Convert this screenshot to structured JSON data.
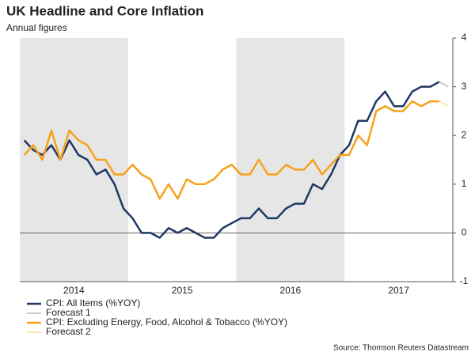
{
  "chart_data": {
    "type": "line",
    "title": "UK Headline and Core Inflation",
    "subtitle": "Annual figures",
    "source": "Source: Thomson Reuters Datastream",
    "x": [
      2014.042,
      2014.125,
      2014.208,
      2014.292,
      2014.375,
      2014.458,
      2014.542,
      2014.625,
      2014.708,
      2014.792,
      2014.875,
      2014.958,
      2015.042,
      2015.125,
      2015.208,
      2015.292,
      2015.375,
      2015.458,
      2015.542,
      2015.625,
      2015.708,
      2015.792,
      2015.875,
      2015.958,
      2016.042,
      2016.125,
      2016.208,
      2016.292,
      2016.375,
      2016.458,
      2016.542,
      2016.625,
      2016.708,
      2016.792,
      2016.875,
      2016.958,
      2017.042,
      2017.125,
      2017.208,
      2017.292,
      2017.375,
      2017.458,
      2017.542,
      2017.625,
      2017.708,
      2017.792,
      2017.875,
      2017.958
    ],
    "series": [
      {
        "name": "CPI: All Items (%YOY)",
        "color": "#1f3864",
        "width": 2.5,
        "values": [
          1.9,
          1.7,
          1.6,
          1.8,
          1.5,
          1.9,
          1.6,
          1.5,
          1.2,
          1.3,
          1.0,
          0.5,
          0.3,
          0.0,
          0.0,
          -0.1,
          0.1,
          0.0,
          0.1,
          0.0,
          -0.1,
          -0.1,
          0.1,
          0.2,
          0.3,
          0.3,
          0.5,
          0.3,
          0.3,
          0.5,
          0.6,
          0.6,
          1.0,
          0.9,
          1.2,
          1.6,
          1.8,
          2.3,
          2.3,
          2.7,
          2.9,
          2.6,
          2.6,
          2.9,
          3.0,
          3.0,
          3.1,
          null
        ]
      },
      {
        "name": "Forecast 1",
        "color": "#b8b8b8",
        "width": 1.5,
        "values": [
          null,
          null,
          null,
          null,
          null,
          null,
          null,
          null,
          null,
          null,
          null,
          null,
          null,
          null,
          null,
          null,
          null,
          null,
          null,
          null,
          null,
          null,
          null,
          null,
          null,
          null,
          null,
          null,
          null,
          null,
          null,
          null,
          null,
          null,
          null,
          null,
          null,
          null,
          null,
          null,
          null,
          null,
          null,
          null,
          null,
          null,
          3.1,
          3.0
        ]
      },
      {
        "name": "CPI: Excluding Energy, Food, Alcohol & Tobacco (%YOY)",
        "color": "#f7a21b",
        "width": 2.5,
        "values": [
          1.6,
          1.8,
          1.5,
          2.1,
          1.5,
          2.1,
          1.9,
          1.8,
          1.5,
          1.5,
          1.2,
          1.2,
          1.4,
          1.2,
          1.1,
          0.7,
          1.0,
          0.7,
          1.1,
          1.0,
          1.0,
          1.1,
          1.3,
          1.4,
          1.2,
          1.2,
          1.5,
          1.2,
          1.2,
          1.4,
          1.3,
          1.3,
          1.5,
          1.2,
          1.4,
          1.6,
          1.6,
          2.0,
          1.8,
          2.5,
          2.6,
          2.5,
          2.5,
          2.7,
          2.6,
          2.7,
          2.7,
          null
        ]
      },
      {
        "name": "Forecast 2",
        "color": "#f9dc9c",
        "width": 1.5,
        "values": [
          null,
          null,
          null,
          null,
          null,
          null,
          null,
          null,
          null,
          null,
          null,
          null,
          null,
          null,
          null,
          null,
          null,
          null,
          null,
          null,
          null,
          null,
          null,
          null,
          null,
          null,
          null,
          null,
          null,
          null,
          null,
          null,
          null,
          null,
          null,
          null,
          null,
          null,
          null,
          null,
          null,
          null,
          null,
          null,
          null,
          null,
          2.7,
          2.6
        ]
      }
    ],
    "xlim": [
      2014,
      2018
    ],
    "xticks": [
      {
        "value": 2014.5,
        "label": "2014"
      },
      {
        "value": 2015.5,
        "label": "2015"
      },
      {
        "value": 2016.5,
        "label": "2016"
      },
      {
        "value": 2017.5,
        "label": "2017"
      }
    ],
    "shaded_ranges": [
      [
        2014,
        2015
      ],
      [
        2016,
        2017
      ]
    ],
    "shade_color": "#e6e6e6",
    "ylim": [
      -1,
      4
    ],
    "yticks": [
      -1,
      0,
      1,
      2,
      3,
      4
    ],
    "zero_line": true,
    "y_axis_side": "right"
  }
}
